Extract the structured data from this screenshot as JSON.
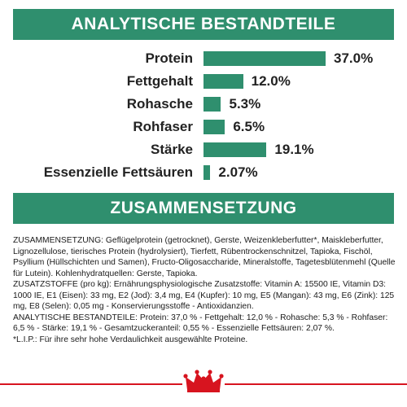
{
  "header": {
    "analytic_title": "ANALYTISCHE BESTANDTEILE",
    "composition_title": "ZUSAMMENSETZUNG"
  },
  "chart_data": {
    "type": "bar",
    "orientation": "horizontal",
    "categories": [
      "Protein",
      "Fettgehalt",
      "Rohasche",
      "Rohfaser",
      "Stärke",
      "Essenzielle Fettsäuren"
    ],
    "values": [
      37.0,
      12.0,
      5.3,
      6.5,
      19.1,
      2.07
    ],
    "value_labels": [
      "37.0%",
      "12.0%",
      "5.3%",
      "6.5%",
      "19.1%",
      "2.07%"
    ],
    "xlim": [
      0,
      37.0
    ],
    "grid": false,
    "color": "#2f8f6e"
  },
  "composition": {
    "p1": "ZUSAMMENSETZUNG: Geflügelprotein (getrocknet), Gerste, Weizenkleberfutter*, Maiskleberfutter, Lignozellulose, tierisches Protein (hydrolysiert), Tierfett, Rübentrockenschnitzel, Tapioka, Fischöl, Psyllium (Hüllschichten und Samen), Fructo-Oligosaccharide, Mineralstoffe, Tagetesblütenmehl (Quelle für Lutein). Kohlenhydratquellen: Gerste, Tapioka.",
    "p2": "ZUSATZSTOFFE (pro kg): Ernährungsphysiologische Zusatzstoffe: Vitamin A: 15500 IE, Vitamin D3: 1000 IE, E1 (Eisen): 33 mg, E2 (Jod): 3,4 mg, E4 (Kupfer): 10 mg, E5 (Mangan): 43 mg, E6 (Zink): 125 mg, E8 (Selen): 0,05 mg - Konservierungsstoffe - Antioxidanzien.",
    "p3": "ANALYTISCHE BESTANDTEILE: Protein: 37,0 % - Fettgehalt: 12,0 % - Rohasche: 5,3 % - Rohfaser: 6,5 % - Stärke: 19,1 % - Gesamtzuckeranteil: 0,55 % - Essenzielle Fettsäuren: 2,07 %.",
    "p4": "*L.I.P.: Für ihre sehr hohe Verdaulichkeit ausgewählte Proteine."
  },
  "footer": {
    "logo_icon": "royal-crown-icon",
    "accent_color": "#d7141f"
  }
}
